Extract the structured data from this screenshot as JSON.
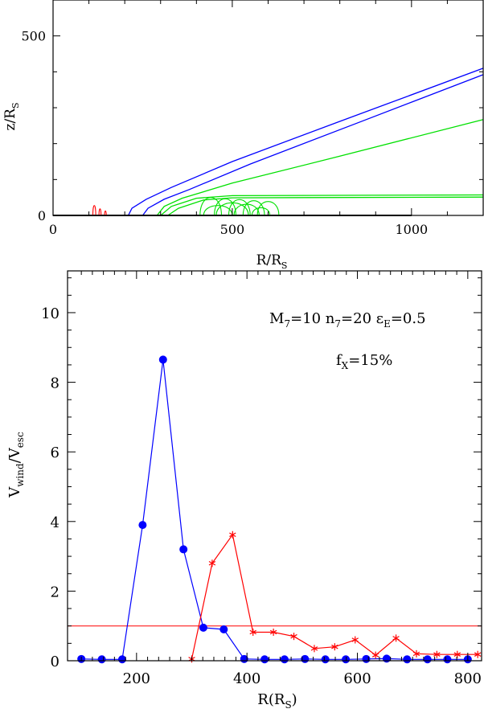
{
  "colors": {
    "blue": "#0000ff",
    "red": "#ff0000",
    "green": "#00e000",
    "black": "#000000"
  },
  "chart_data": [
    {
      "type": "line",
      "title": "",
      "xlabel": "R/R",
      "xlabel_sub": "S",
      "ylabel": "z/R",
      "ylabel_sub": "S",
      "xlim": [
        0,
        1200
      ],
      "ylim": [
        0,
        600
      ],
      "xticks": [
        0,
        500,
        1000
      ],
      "yticks": [
        0,
        500
      ],
      "xtick_labels": [
        "0",
        "500",
        "1000"
      ],
      "ytick_labels": [
        "0",
        "500"
      ],
      "grid": false,
      "note": "streamlines of the wind; blue and green lines rise from the disk, red loops fall back near R≈100",
      "series": [
        {
          "color": "blue",
          "points": [
            [
              210,
              0
            ],
            [
              220,
              20
            ],
            [
              260,
              45
            ],
            [
              330,
              78
            ],
            [
              500,
              150
            ],
            [
              800,
              262
            ],
            [
              1200,
              410
            ]
          ]
        },
        {
          "color": "blue",
          "points": [
            [
              250,
              0
            ],
            [
              265,
              20
            ],
            [
              310,
              45
            ],
            [
              380,
              72
            ],
            [
              550,
              143
            ],
            [
              850,
              258
            ],
            [
              1200,
              392
            ]
          ]
        },
        {
          "color": "green",
          "points": [
            [
              290,
              0
            ],
            [
              310,
              25
            ],
            [
              360,
              48
            ],
            [
              500,
              90
            ],
            [
              800,
              165
            ],
            [
              1200,
              267
            ]
          ]
        },
        {
          "color": "green",
          "points": [
            [
              300,
              0
            ],
            [
              330,
              25
            ],
            [
              400,
              48
            ],
            [
              500,
              55
            ],
            [
              1200,
              57
            ]
          ]
        },
        {
          "color": "green",
          "points": [
            [
              320,
              0
            ],
            [
              350,
              20
            ],
            [
              420,
              43
            ],
            [
              500,
              49
            ],
            [
              1200,
              51
            ]
          ]
        },
        {
          "color": "black",
          "points": [
            [
              0,
              0
            ],
            [
              1000,
              0
            ]
          ]
        }
      ]
    },
    {
      "type": "line",
      "title": "",
      "xlabel": "R(R",
      "xlabel_sub": "S",
      "xlabel_end": ")",
      "ylabel": "V",
      "ylabel_sub1": "wind",
      "ylabel_mid": "/V",
      "ylabel_sub2": "esc",
      "xlim": [
        75,
        825
      ],
      "ylim": [
        0,
        11.2
      ],
      "xticks": [
        200,
        400,
        600,
        800
      ],
      "yticks": [
        0,
        2,
        4,
        6,
        8,
        10
      ],
      "xtick_labels": [
        "200",
        "400",
        "600",
        "800"
      ],
      "ytick_labels": [
        "0",
        "2",
        "4",
        "6",
        "8",
        "10"
      ],
      "grid": false,
      "annotation_line1": {
        "m_a": "M",
        "m_b": "7",
        "m_c": "=10  n",
        "m_d": "7",
        "m_e": "=20  ε",
        "m_f": "E",
        "m_g": "=0.5"
      },
      "annotation_line2": {
        "f_a": "f",
        "f_b": "X",
        "f_c": "=15%"
      },
      "reference_line": {
        "y": 1.0,
        "color": "red"
      },
      "series": [
        {
          "color": "blue",
          "marker": "circle",
          "x": [
            100,
            137,
            174,
            211,
            248,
            285,
            321,
            358,
            395,
            432,
            468,
            505,
            542,
            579,
            616,
            653,
            690,
            727,
            763,
            800
          ],
          "y": [
            0.05,
            0.04,
            0.04,
            3.9,
            8.65,
            3.2,
            0.95,
            0.9,
            0.05,
            0.04,
            0.04,
            0.05,
            0.04,
            0.04,
            0.05,
            0.06,
            0.04,
            0.04,
            0.04,
            0.04
          ]
        },
        {
          "color": "red",
          "marker": "star",
          "x": [
            300,
            337,
            374,
            411,
            448,
            485,
            522,
            559,
            596,
            633,
            670,
            707,
            744,
            781,
            818
          ],
          "y": [
            0.05,
            2.8,
            3.62,
            0.82,
            0.82,
            0.7,
            0.35,
            0.4,
            0.6,
            0.16,
            0.65,
            0.2,
            0.18,
            0.18,
            0.18
          ]
        }
      ]
    }
  ]
}
